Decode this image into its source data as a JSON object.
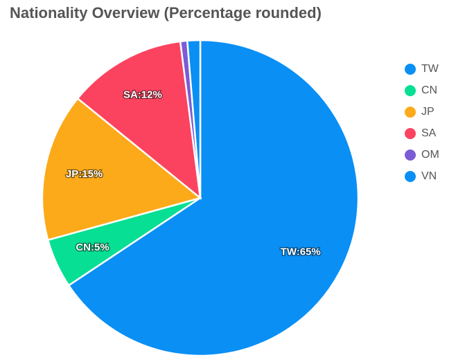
{
  "chart_data": {
    "type": "pie",
    "title": "Nationality Overview (Percentage rounded)",
    "slices": [
      {
        "name": "TW",
        "value": 65,
        "label": "TW:65%",
        "color": "#0a8ff5"
      },
      {
        "name": "CN",
        "value": 5,
        "label": "CN:5%",
        "color": "#06df94"
      },
      {
        "name": "JP",
        "value": 15,
        "label": "JP:15%",
        "color": "#fcaa19"
      },
      {
        "name": "SA",
        "value": 12,
        "label": "SA:12%",
        "color": "#fb435f"
      },
      {
        "name": "OM",
        "value": 0.7,
        "label": "",
        "color": "#7b5bd6"
      },
      {
        "name": "VN",
        "value": 1.3,
        "label": "",
        "color": "#0a8ff5"
      }
    ],
    "legend": {
      "placement": "right",
      "items": [
        "TW",
        "CN",
        "JP",
        "SA",
        "OM",
        "VN"
      ]
    }
  }
}
